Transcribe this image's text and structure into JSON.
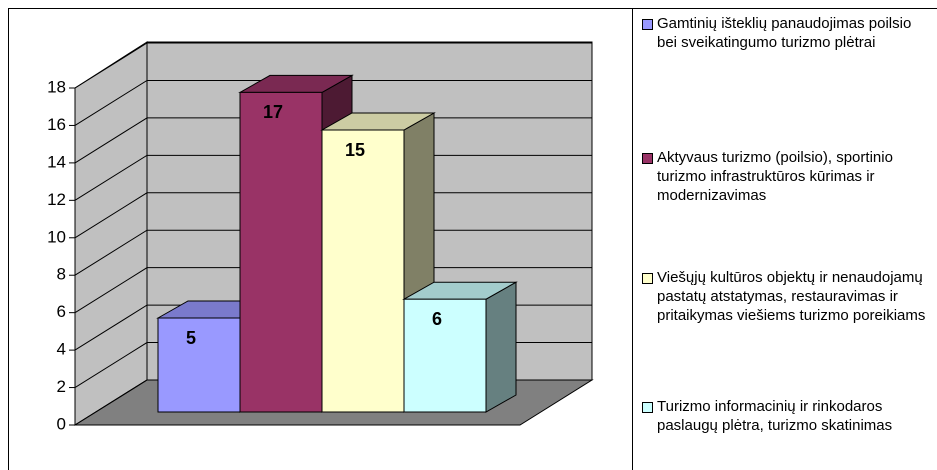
{
  "chart_data": {
    "type": "bar",
    "series": [
      {
        "name": "Gamtinių išteklių panaudojimas poilsio bei sveikatingumo turizmo plėtrai",
        "color": "#9999ff",
        "values": [
          5
        ]
      },
      {
        "name": "Aktyvaus turizmo (poilsio), sportinio turizmo infrastruktūros kūrimas ir modernizavimas",
        "color": "#993366",
        "values": [
          17
        ]
      },
      {
        "name": "Viešųjų kultūros objektų ir nenaudojamų pastatų atstatymas, restauravimas ir pritaikymas viešiems turizmo poreikiams",
        "color": "#ffffcc",
        "values": [
          15
        ]
      },
      {
        "name": "Turizmo informacinių ir rinkodaros paslaugų plėtra, turizmo skatinimas",
        "color": "#ccffff",
        "values": [
          6
        ]
      }
    ],
    "ylim": [
      0,
      18
    ],
    "yticks": [
      0,
      2,
      4,
      6,
      8,
      10,
      12,
      14,
      16,
      18
    ],
    "grid": true,
    "legend": "right"
  }
}
